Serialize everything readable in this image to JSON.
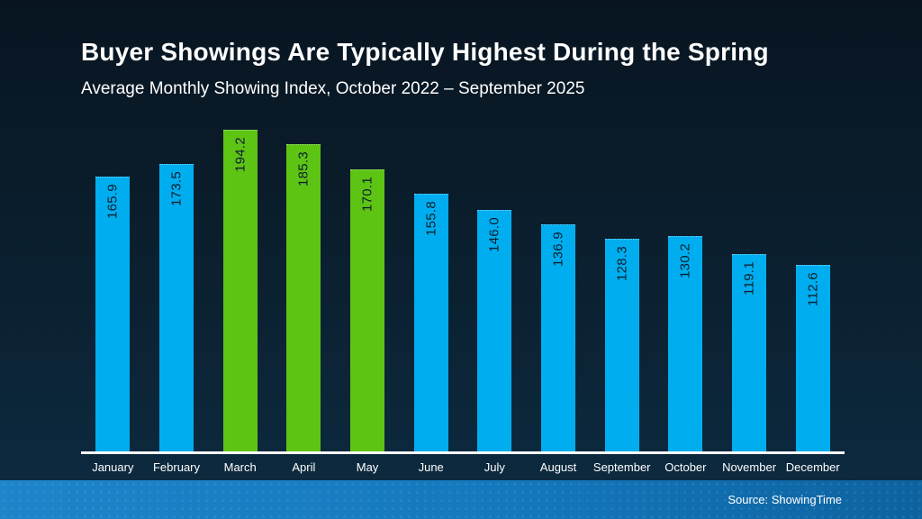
{
  "slide": {
    "title": "Buyer Showings Are Typically Highest During the Spring",
    "subtitle": "Average Monthly Showing Index, October 2022 – September 2025",
    "source": "Source: ShowingTime"
  },
  "colors": {
    "background_top": "#081521",
    "background_bottom": "#0d2b41",
    "bar_blue": "#00aeef",
    "bar_green": "#5ec414",
    "footer_band_blue": "#1478bd",
    "axis_line": "#ffffff",
    "title_text": "#ffffff",
    "value_label_text": "#0b1f2e"
  },
  "chart_data": {
    "type": "bar",
    "title": "Buyer Showings Are Typically Highest During the Spring",
    "subtitle": "Average Monthly Showing Index, October 2022 – September 2025",
    "xlabel": "",
    "ylabel": "Average Monthly Showing Index",
    "categories": [
      "January",
      "February",
      "March",
      "April",
      "May",
      "June",
      "July",
      "August",
      "September",
      "October",
      "November",
      "December"
    ],
    "values": [
      165.9,
      173.5,
      194.2,
      185.3,
      170.1,
      155.8,
      146.0,
      136.9,
      128.3,
      130.2,
      119.1,
      112.6
    ],
    "value_labels": [
      "165.9",
      "173.5",
      "194.2",
      "185.3",
      "170.1",
      "155.8",
      "146.0",
      "136.9",
      "128.3",
      "130.2",
      "119.1",
      "112.6"
    ],
    "bar_colors": [
      "blue",
      "blue",
      "green",
      "green",
      "green",
      "blue",
      "blue",
      "blue",
      "blue",
      "blue",
      "blue",
      "blue"
    ],
    "highlighted_months": [
      "March",
      "April",
      "May"
    ],
    "ylim": [
      0,
      200
    ],
    "grid": "off",
    "legend": "none",
    "value_labels_rotated": true,
    "source": "Source: ShowingTime"
  }
}
